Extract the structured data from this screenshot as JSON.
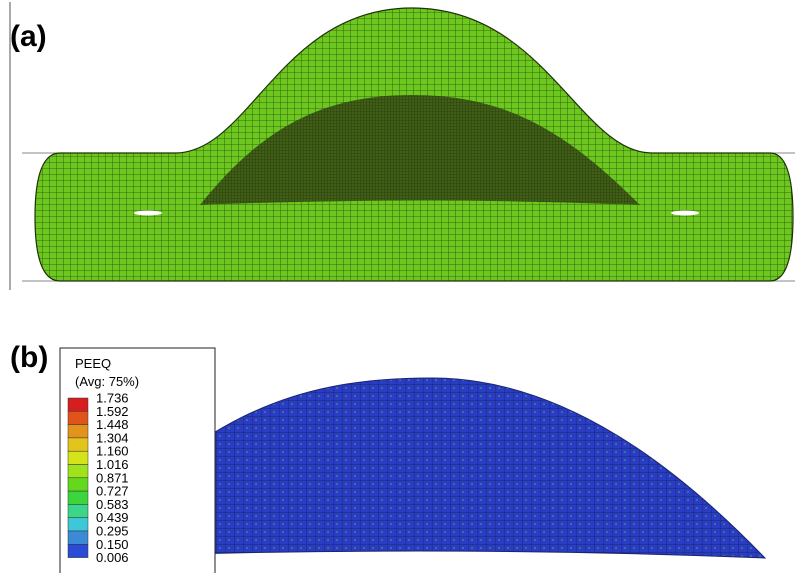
{
  "panel_a": {
    "label": "(a)"
  },
  "panel_b": {
    "label": "(b)",
    "legend": {
      "title": "PEEQ",
      "subtitle": "(Avg: 75%)",
      "levels": [
        "1.736",
        "1.592",
        "1.448",
        "1.304",
        "1.160",
        "1.016",
        "0.871",
        "0.727",
        "0.583",
        "0.439",
        "0.295",
        "0.150",
        "0.006"
      ],
      "colors": [
        "#d61e1e",
        "#e0541c",
        "#e3921c",
        "#e3c41c",
        "#d4e31c",
        "#9fe31c",
        "#62d91c",
        "#3cd63c",
        "#3cd68a",
        "#3cc8d6",
        "#3c8ad6",
        "#2a4bd6",
        "#1a1ad6"
      ]
    }
  }
}
